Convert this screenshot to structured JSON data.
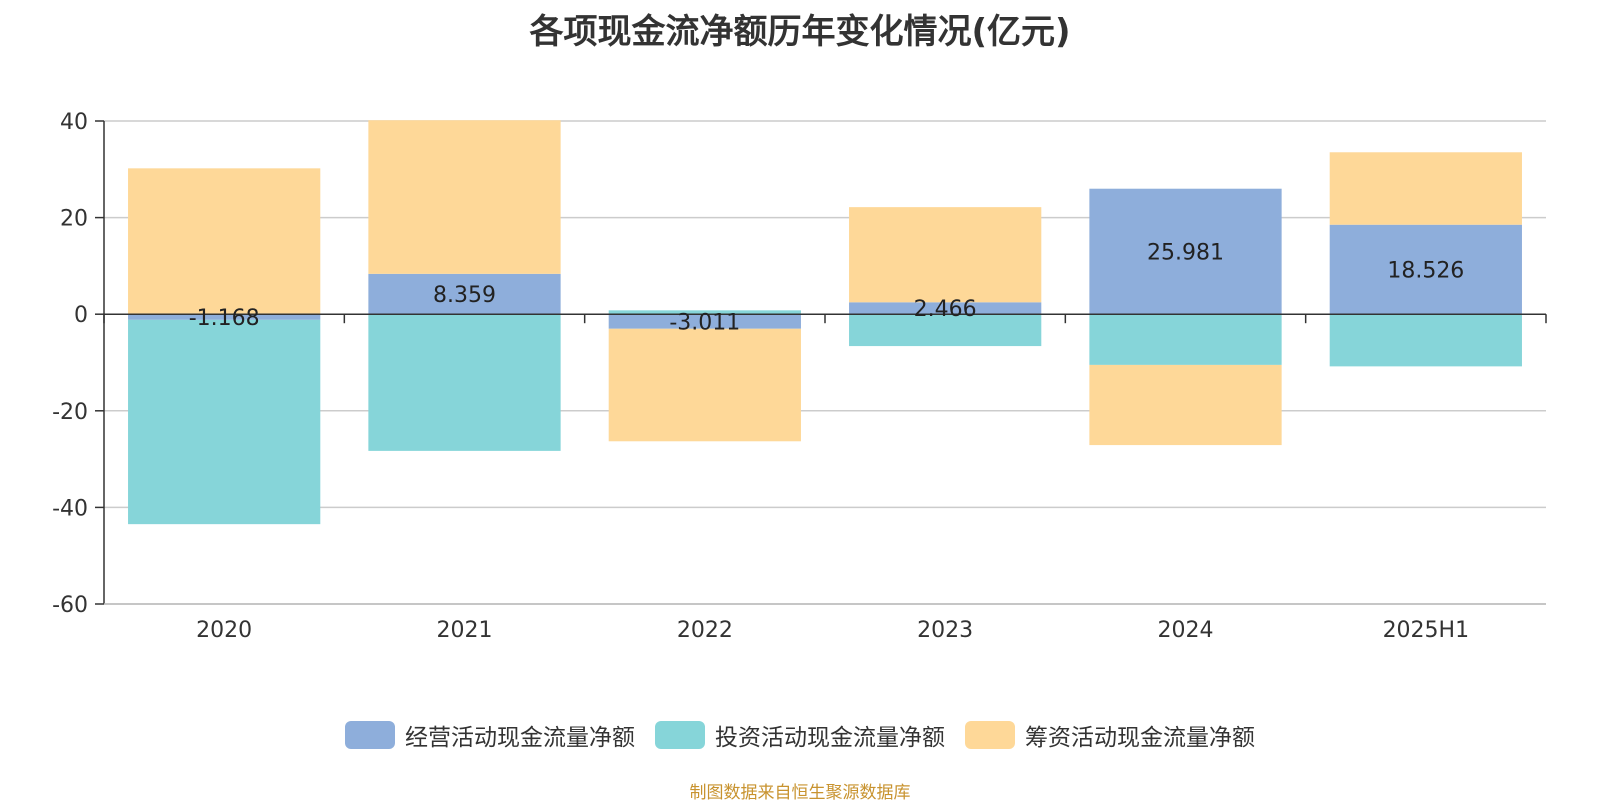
{
  "chart_data": {
    "type": "bar",
    "stacked": true,
    "title": "各项现金流净额历年变化情况(亿元)",
    "categories": [
      "2020",
      "2021",
      "2022",
      "2023",
      "2024",
      "2025H1"
    ],
    "series": [
      {
        "name": "经营活动现金流量净额",
        "color": "#8eaedb",
        "values": [
          -1.168,
          8.359,
          -3.011,
          2.466,
          25.981,
          18.526
        ],
        "labels": [
          "-1.168",
          "8.359",
          "-3.011",
          "2.466",
          "25.981",
          "18.526"
        ]
      },
      {
        "name": "投资活动现金流量净额",
        "color": "#86d5d9",
        "values": [
          -42.3,
          -28.3,
          0.8,
          -6.6,
          -10.5,
          -10.8
        ]
      },
      {
        "name": "筹资活动现金流量净额",
        "color": "#fed898",
        "values": [
          30.2,
          31.8,
          -23.3,
          19.7,
          -16.6,
          15.0
        ]
      }
    ],
    "ylim": [
      -60,
      40
    ],
    "yticks": [
      40,
      20,
      0,
      -20,
      -40,
      -60
    ],
    "grid": true,
    "legend_position": "bottom"
  },
  "source_note": "制图数据来自恒生聚源数据库"
}
